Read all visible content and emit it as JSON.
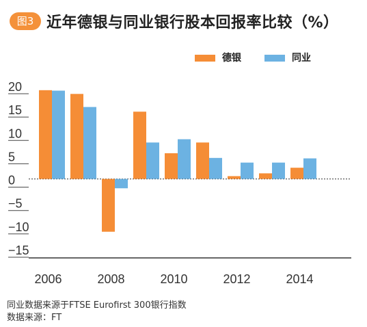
{
  "figure_badge": "图3",
  "title": "近年德银与同业银行股本回报率比较（%）",
  "notes": [
    "同业数据来源于FTSE Eurofirst 300银行指数",
    "数据来源：FT"
  ],
  "colors": {
    "db": "#f58d36",
    "peers": "#6cb2e2",
    "axis": "#333333"
  },
  "chart_data": {
    "type": "bar",
    "title": "近年德银与同业银行股本回报率比较（%）",
    "xlabel": "",
    "ylabel": "",
    "categories": [
      "2006",
      "2007",
      "2008",
      "2009",
      "2010",
      "2011",
      "2012",
      "2013",
      "2014"
    ],
    "x_tick_labels": [
      "2006",
      "",
      "2008",
      "",
      "2010",
      "",
      "2012",
      "",
      "2014"
    ],
    "y_ticks": [
      20,
      15,
      10,
      5,
      0,
      -5,
      -10,
      -15
    ],
    "y_tick_labels": [
      "20",
      "15",
      "10",
      "5",
      "0",
      "−5",
      "−10",
      "−15"
    ],
    "ylim": [
      -15,
      20
    ],
    "legend_position": "top-right",
    "series": [
      {
        "name": "德银",
        "color": "#f58d36",
        "values": [
          19,
          18.2,
          -11.3,
          14.4,
          5.5,
          7.8,
          0.6,
          1.2,
          2.4
        ]
      },
      {
        "name": "同业",
        "color": "#6cb2e2",
        "values": [
          18.9,
          15.4,
          -2,
          7.8,
          8.5,
          4.5,
          3.5,
          3.5,
          4.4
        ]
      }
    ]
  }
}
